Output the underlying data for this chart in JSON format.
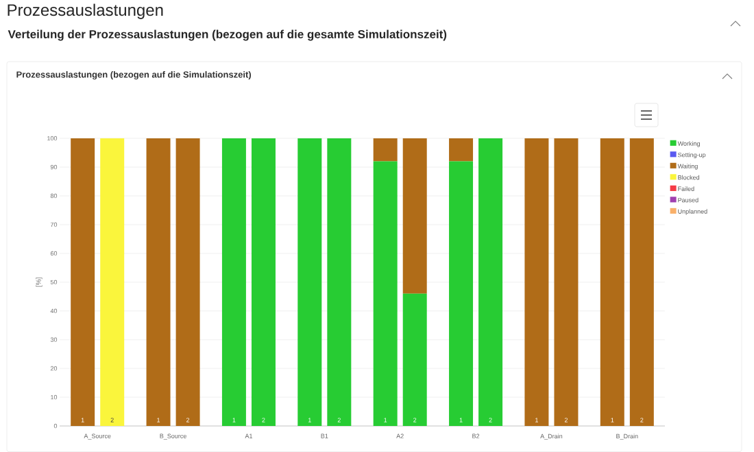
{
  "chart_data": {
    "type": "bar",
    "stacked": true,
    "title": "Prozessauslastungen",
    "subtitle": "Verteilung der Prozessauslastungen (bezogen auf die gesamte Simulationszeit)",
    "annotations": [
      "Prozessauslastungen (bezogen auf die Simulationszeit)",
      "A_Source",
      "B_Source",
      "A1",
      "B1",
      "A2",
      "B2",
      "A_Drain",
      "B_Drain"
    ],
    "categories": [
      "1",
      "2",
      "1",
      "2",
      "1",
      "2",
      "1",
      "2",
      "1",
      "2",
      "1",
      "2",
      "1",
      "2",
      "1",
      "2"
    ],
    "ylabel": "[%]",
    "ylim": [
      0,
      100
    ],
    "yticks": [
      0,
      10,
      20,
      30,
      40,
      50,
      60,
      70,
      80,
      90,
      100
    ],
    "grid": "y",
    "legend": "right",
    "series": [
      {
        "name": "Working",
        "color": "#27cc33",
        "values": [
          0,
          0,
          0,
          0,
          100,
          100,
          100,
          100,
          92,
          46,
          92,
          100,
          0,
          0,
          0,
          0
        ]
      },
      {
        "name": "Setting-up",
        "color": "#5a5af0",
        "values": [
          0,
          0,
          0,
          0,
          0,
          0,
          0,
          0,
          0,
          0,
          0,
          0,
          0,
          0,
          0,
          0
        ]
      },
      {
        "name": "Waiting",
        "color": "#b06c18",
        "values": [
          100,
          0,
          100,
          100,
          0,
          0,
          0,
          0,
          8,
          54,
          8,
          0,
          100,
          100,
          100,
          100
        ]
      },
      {
        "name": "Blocked",
        "color": "#faf53c",
        "values": [
          0,
          100,
          0,
          0,
          0,
          0,
          0,
          0,
          0,
          0,
          0,
          0,
          0,
          0,
          0,
          0
        ]
      },
      {
        "name": "Failed",
        "color": "#f53c46",
        "values": [
          0,
          0,
          0,
          0,
          0,
          0,
          0,
          0,
          0,
          0,
          0,
          0,
          0,
          0,
          0,
          0
        ]
      },
      {
        "name": "Paused",
        "color": "#a040b0",
        "values": [
          0,
          0,
          0,
          0,
          0,
          0,
          0,
          0,
          0,
          0,
          0,
          0,
          0,
          0,
          0,
          0
        ]
      },
      {
        "name": "Unplanned",
        "color": "#f9b06a",
        "values": [
          0,
          0,
          0,
          0,
          0,
          0,
          0,
          0,
          0,
          0,
          0,
          0,
          0,
          0,
          0,
          0
        ]
      }
    ]
  }
}
